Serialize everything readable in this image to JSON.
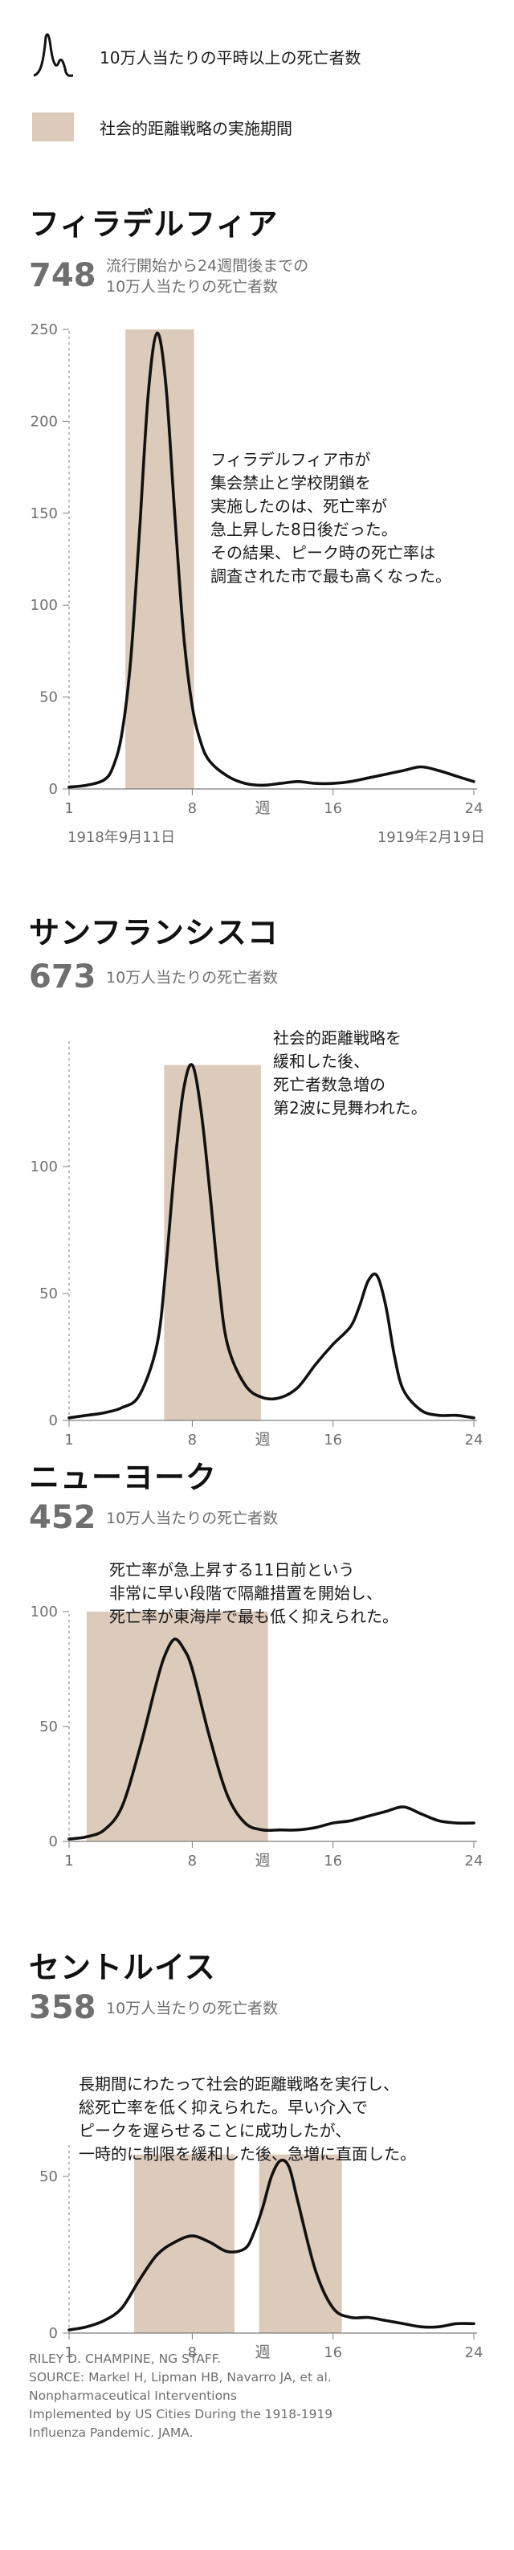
{
  "legend": {
    "line_label": "10万人当たりの平時以上の死亡者数",
    "band_label": "社会的距離戦略の実施期間",
    "line_color": "#111111",
    "band_color": "#dccabb"
  },
  "week_label": "週",
  "subtitle_per100k": "10万人当たりの死亡者数",
  "charts": [
    {
      "city": "フィラデルフィア",
      "deaths": "748",
      "deaths_label_lines": [
        "流行開始から24週間後までの",
        "10万人当たりの死亡者数"
      ],
      "date_start": "1918年9月11日",
      "date_end": "1919年2月19日",
      "note_lines": [
        "フィラデルフィア市が",
        "集会禁止と学校閉鎖を",
        "実施したのは、死亡率が",
        "急上昇した8日後だった。",
        "その結果、ピーク時の死亡率は",
        "調査された市で最も高くなった。"
      ]
    },
    {
      "city": "サンフランシスコ",
      "deaths": "673",
      "deaths_label_lines": [
        "10万人当たりの死亡者数"
      ],
      "note_lines": [
        "社会的距離戦略を",
        "緩和した後、",
        "死亡者数急増の",
        "第2波に見舞われた。"
      ]
    },
    {
      "city": "ニューヨーク",
      "deaths": "452",
      "deaths_label_lines": [
        "10万人当たりの死亡者数"
      ],
      "note_lines": [
        "死亡率が急上昇する11日前という",
        "非常に早い段階で隔離措置を開始し、",
        "死亡率が東海岸で最も低く抑えられた。"
      ]
    },
    {
      "city": "セントルイス",
      "deaths": "358",
      "deaths_label_lines": [
        "10万人当たりの死亡者数"
      ],
      "note_lines": [
        "長期間にわたって社会的距離戦略を実行し、",
        "総死亡率を低く抑えられた。早い介入で",
        "ピークを遅らせることに成功したが、",
        "一時的に制限を緩和した後、急増に直面した。"
      ]
    }
  ],
  "chart_data": [
    {
      "type": "line",
      "title": "フィラデルフィア",
      "xlabel": "週",
      "xlim": [
        1,
        24
      ],
      "ylim": [
        0,
        250
      ],
      "x_ticks": [
        1,
        8,
        16,
        24
      ],
      "y_ticks": [
        0,
        50,
        100,
        150,
        200,
        250
      ],
      "bands": [
        [
          4.2,
          8.1
        ]
      ],
      "series": [
        {
          "name": "10万人当たりの平時以上の死亡者数",
          "x": [
            1,
            2,
            3,
            3.5,
            4,
            4.5,
            5,
            5.5,
            6,
            6.5,
            7,
            7.5,
            8,
            8.5,
            9,
            10,
            11,
            12,
            13,
            14,
            15,
            16,
            17,
            18,
            19,
            20,
            21,
            22,
            23,
            24
          ],
          "y": [
            1,
            2,
            5,
            12,
            30,
            70,
            140,
            215,
            248,
            220,
            150,
            85,
            45,
            25,
            15,
            7,
            3,
            2,
            3,
            4,
            3,
            3,
            4,
            6,
            8,
            10,
            12,
            10,
            7,
            4
          ]
        }
      ]
    },
    {
      "type": "line",
      "title": "サンフランシスコ",
      "xlabel": "週",
      "xlim": [
        1,
        24
      ],
      "ylim": [
        0,
        150
      ],
      "x_ticks": [
        1,
        8,
        16,
        24
      ],
      "y_ticks": [
        0,
        50,
        100
      ],
      "bands": [
        [
          6.4,
          11.9
        ]
      ],
      "series": [
        {
          "name": "10万人当たりの平時以上の死亡者数",
          "x": [
            1,
            2,
            3,
            4,
            5,
            6,
            6.5,
            7,
            7.5,
            8,
            8.5,
            9,
            9.5,
            10,
            11,
            12,
            13,
            14,
            15,
            16,
            17,
            17.5,
            18,
            18.5,
            19,
            19.5,
            20,
            21,
            22,
            23,
            24
          ],
          "y": [
            1,
            2,
            3,
            5,
            10,
            30,
            60,
            100,
            130,
            140,
            122,
            90,
            55,
            30,
            14,
            9,
            9,
            13,
            22,
            30,
            37,
            45,
            55,
            57,
            45,
            25,
            12,
            4,
            2,
            2,
            1
          ]
        }
      ]
    },
    {
      "type": "line",
      "title": "ニューヨーク",
      "xlabel": "週",
      "xlim": [
        1,
        24
      ],
      "ylim": [
        0,
        100
      ],
      "x_ticks": [
        1,
        8,
        16,
        24
      ],
      "y_ticks": [
        0,
        50,
        100
      ],
      "bands": [
        [
          2,
          12.3
        ]
      ],
      "series": [
        {
          "name": "10万人当たりの平時以上の死亡者数",
          "x": [
            1,
            2,
            3,
            4,
            5,
            6,
            6.5,
            7,
            7.5,
            8,
            9,
            10,
            11,
            12,
            13,
            14,
            15,
            16,
            17,
            18,
            19,
            20,
            21,
            22,
            23,
            24
          ],
          "y": [
            1,
            2,
            5,
            15,
            40,
            70,
            82,
            88,
            84,
            75,
            45,
            20,
            8,
            5,
            5,
            5,
            6,
            8,
            9,
            11,
            13,
            15,
            12,
            9,
            8,
            8
          ]
        }
      ]
    },
    {
      "type": "line",
      "title": "セントルイス",
      "xlabel": "週",
      "xlim": [
        1,
        24
      ],
      "ylim": [
        0,
        60
      ],
      "x_ticks": [
        1,
        8,
        16,
        24
      ],
      "y_ticks": [
        0,
        50
      ],
      "bands": [
        [
          4.7,
          10.4
        ],
        [
          11.8,
          16.5
        ]
      ],
      "series": [
        {
          "name": "10万人当たりの平時以上の死亡者数",
          "x": [
            1,
            2,
            3,
            4,
            5,
            6,
            7,
            8,
            9,
            10,
            11,
            11.5,
            12,
            12.5,
            13,
            13.5,
            14,
            15,
            16,
            17,
            18,
            19,
            20,
            21,
            22,
            23,
            24
          ],
          "y": [
            1,
            2,
            4,
            8,
            17,
            25,
            29,
            31,
            29,
            26,
            27,
            32,
            40,
            50,
            55,
            53,
            42,
            20,
            8,
            5,
            5,
            4,
            3,
            2,
            2,
            3,
            3
          ]
        }
      ]
    }
  ],
  "credit_lines": [
    "RILEY D. CHAMPINE, NG STAFF.",
    "SOURCE: Markel H, Lipman HB, Navarro JA, et al.",
    "Nonpharmaceutical Interventions",
    "Implemented by US Cities During the 1918-1919",
    "Influenza Pandemic. JAMA."
  ]
}
